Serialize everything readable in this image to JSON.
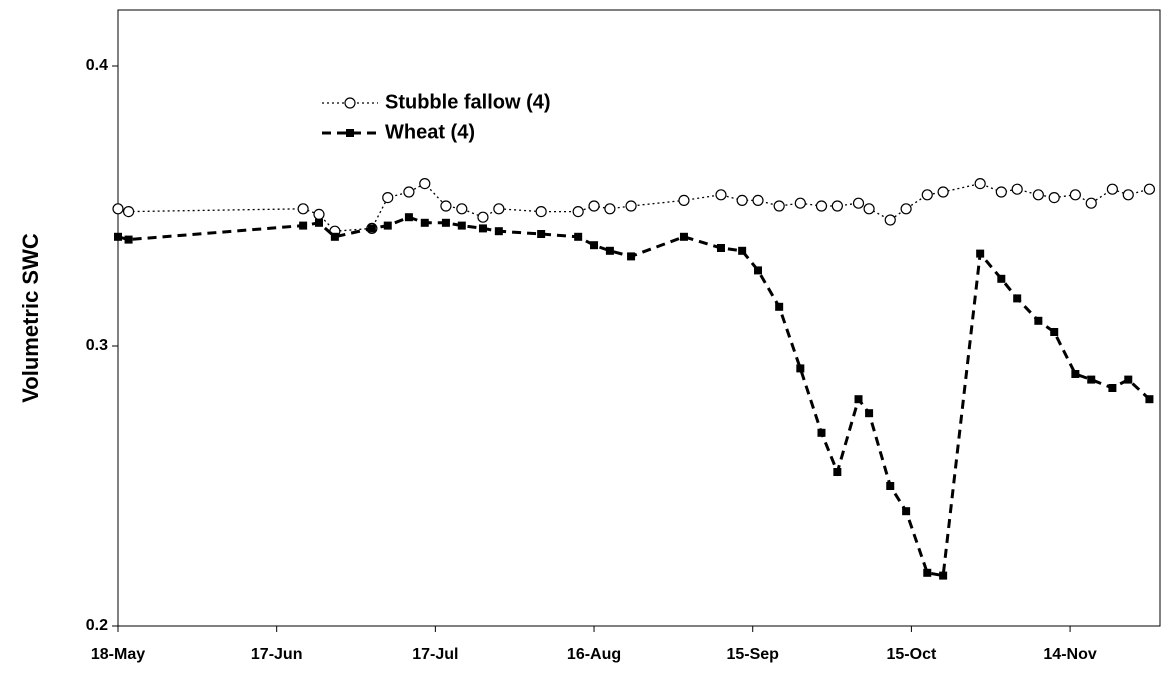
{
  "chart_data": {
    "type": "line",
    "y_label": "Volumetric SWC",
    "x": [
      "18-May",
      "20-May",
      "22-Jun",
      "25-Jun",
      "28-Jun",
      "5-Jul",
      "8-Jul",
      "12-Jul",
      "15-Jul",
      "19-Jul",
      "22-Jul",
      "26-Jul",
      "29-Jul",
      "6-Aug",
      "13-Aug",
      "16-Aug",
      "19-Aug",
      "23-Aug",
      "2-Sep",
      "9-Sep",
      "13-Sep",
      "16-Sep",
      "20-Sep",
      "24-Sep",
      "28-Sep",
      "1-Oct",
      "5-Oct",
      "7-Oct",
      "11-Oct",
      "14-Oct",
      "18-Oct",
      "21-Oct",
      "28-Oct",
      "1-Nov",
      "4-Nov",
      "8-Nov",
      "11-Nov",
      "15-Nov",
      "18-Nov",
      "22-Nov",
      "25-Nov",
      "29-Nov"
    ],
    "series": [
      {
        "name": "Stubble fallow (4)",
        "color": "#000000",
        "line_style": "dotted",
        "marker": "circle",
        "values": [
          0.349,
          0.348,
          0.349,
          0.347,
          0.341,
          0.342,
          0.353,
          0.355,
          0.358,
          0.35,
          0.349,
          0.346,
          0.349,
          0.348,
          0.348,
          0.35,
          0.349,
          0.35,
          0.352,
          0.354,
          0.352,
          0.352,
          0.35,
          0.351,
          0.35,
          0.35,
          0.351,
          0.349,
          0.345,
          0.349,
          0.354,
          0.355,
          0.358,
          0.355,
          0.356,
          0.354,
          0.353,
          0.354,
          0.351,
          0.356,
          0.354,
          0.356
        ]
      },
      {
        "name": "Wheat (4)",
        "color": "#000000",
        "line_style": "dashed",
        "marker": "square",
        "values": [
          0.339,
          0.338,
          0.343,
          0.344,
          0.339,
          0.342,
          0.343,
          0.346,
          0.344,
          0.344,
          0.343,
          0.342,
          0.341,
          0.34,
          0.339,
          0.336,
          0.334,
          0.332,
          0.339,
          0.335,
          0.334,
          0.327,
          0.314,
          0.292,
          0.269,
          0.255,
          0.281,
          0.276,
          0.25,
          0.241,
          0.219,
          0.218,
          0.333,
          0.324,
          0.317,
          0.309,
          0.305,
          0.29,
          0.288,
          0.285,
          0.288,
          0.281
        ]
      }
    ],
    "xlim": [
      "18-May",
      "1-Dec"
    ],
    "xticks": [
      "18-May",
      "17-Jun",
      "17-Jul",
      "16-Aug",
      "15-Sep",
      "15-Oct",
      "14-Nov"
    ],
    "ylim": [
      0.2,
      0.42
    ],
    "yticks": [
      0.2,
      0.3,
      0.4
    ],
    "grid": false
  }
}
